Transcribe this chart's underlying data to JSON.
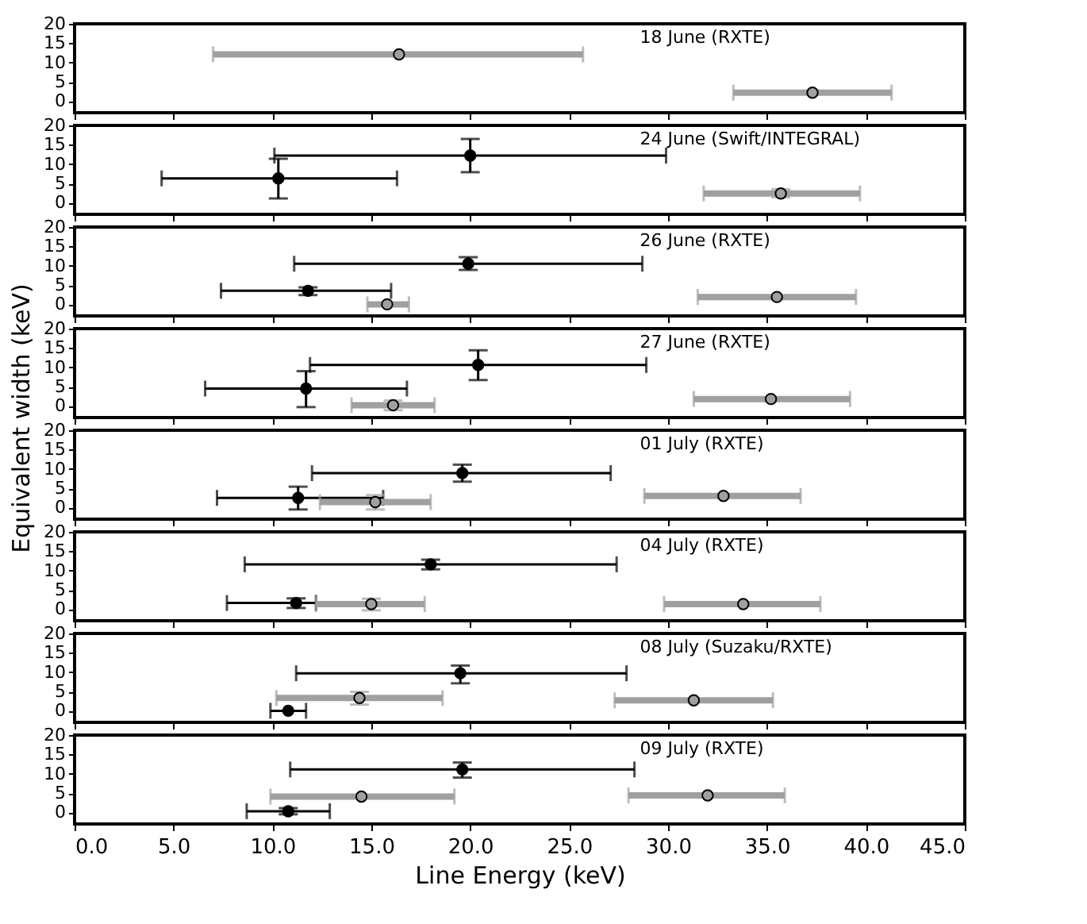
{
  "chart_data": [
    {
      "type": "scatter",
      "annotations": [
        "18 June (RXTE)"
      ],
      "xlim": [
        0,
        45
      ],
      "xticks": [
        {
          "value": 0,
          "label": null
        },
        {
          "value": 5,
          "label": null
        },
        {
          "value": 10,
          "label": null
        },
        {
          "value": 15,
          "label": null
        },
        {
          "value": 20,
          "label": null
        },
        {
          "value": 25,
          "label": null
        },
        {
          "value": 30,
          "label": null
        },
        {
          "value": 35,
          "label": null
        },
        {
          "value": 40,
          "label": null
        },
        {
          "value": 45,
          "label": null
        }
      ],
      "ylim": [
        -3,
        20
      ],
      "yticks": [
        0,
        5,
        10,
        15,
        20
      ],
      "tick_labels": "y",
      "marker": "circle",
      "series": [
        {
          "color": "#a0a0a0",
          "x": [
            16.4,
            37.3
          ],
          "values": [
            12.1,
            2.2
          ],
          "xerrors": [
            [
              7.0,
              25.7
            ],
            [
              33.3,
              41.3
            ]
          ],
          "errors": [
            null,
            null
          ]
        }
      ]
    },
    {
      "type": "scatter",
      "annotations": [
        "24 June (Swift/INTEGRAL)"
      ],
      "xlim": [
        0,
        45
      ],
      "xticks": [
        {
          "value": 0,
          "label": null
        },
        {
          "value": 5,
          "label": null
        },
        {
          "value": 10,
          "label": null
        },
        {
          "value": 15,
          "label": null
        },
        {
          "value": 20,
          "label": null
        },
        {
          "value": 25,
          "label": null
        },
        {
          "value": 30,
          "label": null
        },
        {
          "value": 35,
          "label": null
        },
        {
          "value": 40,
          "label": null
        },
        {
          "value": 45,
          "label": null
        }
      ],
      "ylim": [
        -3,
        20
      ],
      "yticks": [
        0,
        5,
        10,
        15,
        20
      ],
      "tick_labels": "y",
      "marker": "circle",
      "series": [
        {
          "color": "#000000",
          "x": [
            10.3,
            20.0
          ],
          "values": [
            6.3,
            12.2
          ],
          "xerrors": [
            [
              4.4,
              16.3
            ],
            [
              10.1,
              29.9
            ]
          ],
          "errors": [
            [
              1.1,
              11.4
            ],
            [
              7.9,
              16.5
            ]
          ]
        },
        {
          "color": "#a0a0a0",
          "x": [
            35.7
          ],
          "values": [
            2.4
          ],
          "xerrors": [
            [
              31.8,
              39.7
            ]
          ],
          "errors": [
            [
              1.4,
              3.5
            ]
          ]
        }
      ]
    },
    {
      "type": "scatter",
      "annotations": [
        "26 June (RXTE)"
      ],
      "xlim": [
        0,
        45
      ],
      "xticks": [
        {
          "value": 0,
          "label": null
        },
        {
          "value": 5,
          "label": null
        },
        {
          "value": 10,
          "label": null
        },
        {
          "value": 15,
          "label": null
        },
        {
          "value": 20,
          "label": null
        },
        {
          "value": 25,
          "label": null
        },
        {
          "value": 30,
          "label": null
        },
        {
          "value": 35,
          "label": null
        },
        {
          "value": 40,
          "label": null
        },
        {
          "value": 45,
          "label": null
        }
      ],
      "ylim": [
        -3,
        20
      ],
      "yticks": [
        0,
        5,
        10,
        15,
        20
      ],
      "tick_labels": "y",
      "marker": "circle",
      "series": [
        {
          "color": "#000000",
          "x": [
            11.8,
            19.9
          ],
          "values": [
            3.5,
            10.5
          ],
          "xerrors": [
            [
              7.4,
              16.0
            ],
            [
              11.1,
              28.7
            ]
          ],
          "errors": [
            [
              2.4,
              4.4
            ],
            [
              8.9,
              12.2
            ]
          ]
        },
        {
          "color": "#a0a0a0",
          "x": [
            15.8,
            35.5
          ],
          "values": [
            0,
            1.9
          ],
          "xerrors": [
            [
              14.8,
              16.9
            ],
            [
              31.5,
              39.5
            ]
          ],
          "errors": [
            null,
            null
          ]
        }
      ]
    },
    {
      "type": "scatter",
      "annotations": [
        "27 June (RXTE)"
      ],
      "ylabel": "Equivalent width (keV)",
      "xlim": [
        0,
        45
      ],
      "xticks": [
        {
          "value": 0,
          "label": null
        },
        {
          "value": 5,
          "label": null
        },
        {
          "value": 10,
          "label": null
        },
        {
          "value": 15,
          "label": null
        },
        {
          "value": 20,
          "label": null
        },
        {
          "value": 25,
          "label": null
        },
        {
          "value": 30,
          "label": null
        },
        {
          "value": 35,
          "label": null
        },
        {
          "value": 40,
          "label": null
        },
        {
          "value": 45,
          "label": null
        }
      ],
      "ylim": [
        -3,
        20
      ],
      "yticks": [
        0,
        5,
        10,
        15,
        20
      ],
      "tick_labels": "y",
      "marker": "circle",
      "series": [
        {
          "color": "#000000",
          "x": [
            11.7,
            20.4
          ],
          "values": [
            4.5,
            10.6
          ],
          "xerrors": [
            [
              6.6,
              16.8
            ],
            [
              11.9,
              28.9
            ]
          ],
          "errors": [
            [
              -0.3,
              9.0
            ],
            [
              6.7,
              14.4
            ]
          ]
        },
        {
          "color": "#a0a0a0",
          "x": [
            16.1,
            35.2
          ],
          "values": [
            0.2,
            1.8
          ],
          "xerrors": [
            [
              14.0,
              18.2
            ],
            [
              31.3,
              39.2
            ]
          ],
          "errors": [
            [
              -1.1,
              1.4
            ],
            null
          ]
        }
      ]
    },
    {
      "type": "scatter",
      "annotations": [
        "01 July (RXTE)"
      ],
      "xlim": [
        0,
        45
      ],
      "xticks": [
        {
          "value": 0,
          "label": null
        },
        {
          "value": 5,
          "label": null
        },
        {
          "value": 10,
          "label": null
        },
        {
          "value": 15,
          "label": null
        },
        {
          "value": 20,
          "label": null
        },
        {
          "value": 25,
          "label": null
        },
        {
          "value": 30,
          "label": null
        },
        {
          "value": 35,
          "label": null
        },
        {
          "value": 40,
          "label": null
        },
        {
          "value": 45,
          "label": null
        }
      ],
      "ylim": [
        -3,
        20
      ],
      "yticks": [
        0,
        5,
        10,
        15,
        20
      ],
      "tick_labels": "y",
      "marker": "circle",
      "series": [
        {
          "color": "#000000",
          "x": [
            11.3,
            19.6
          ],
          "values": [
            2.5,
            8.9
          ],
          "xerrors": [
            [
              7.2,
              15.6
            ],
            [
              12.0,
              27.1
            ]
          ],
          "errors": [
            [
              -0.5,
              5.4
            ],
            [
              6.7,
              11.1
            ]
          ]
        },
        {
          "color": "#a0a0a0",
          "x": [
            15.2,
            32.8
          ],
          "values": [
            1.4,
            3.0
          ],
          "xerrors": [
            [
              12.4,
              18.0
            ],
            [
              28.8,
              36.7
            ]
          ],
          "errors": [
            [
              -0.5,
              3.2
            ],
            null
          ]
        }
      ]
    },
    {
      "type": "scatter",
      "annotations": [
        "04 July (RXTE)"
      ],
      "xlim": [
        0,
        45
      ],
      "xticks": [
        {
          "value": 0,
          "label": null
        },
        {
          "value": 5,
          "label": null
        },
        {
          "value": 10,
          "label": null
        },
        {
          "value": 15,
          "label": null
        },
        {
          "value": 20,
          "label": null
        },
        {
          "value": 25,
          "label": null
        },
        {
          "value": 30,
          "label": null
        },
        {
          "value": 35,
          "label": null
        },
        {
          "value": 40,
          "label": null
        },
        {
          "value": 45,
          "label": null
        }
      ],
      "ylim": [
        -3,
        20
      ],
      "yticks": [
        0,
        5,
        10,
        15,
        20
      ],
      "tick_labels": "y",
      "marker": "circle",
      "series": [
        {
          "color": "#000000",
          "x": [
            11.2,
            18.0
          ],
          "values": [
            1.6,
            11.6
          ],
          "xerrors": [
            [
              7.7,
              12.2
            ],
            [
              8.6,
              27.4
            ]
          ],
          "errors": [
            [
              0.3,
              2.8
            ],
            [
              10.3,
              12.8
            ]
          ]
        },
        {
          "color": "#a0a0a0",
          "x": [
            15.0,
            33.8
          ],
          "values": [
            1.3,
            1.3
          ],
          "xerrors": [
            [
              12.2,
              17.7
            ],
            [
              29.8,
              37.7
            ]
          ],
          "errors": [
            [
              -0.3,
              2.7
            ],
            null
          ]
        }
      ]
    },
    {
      "type": "scatter",
      "annotations": [
        "08 July (Suzaku/RXTE)"
      ],
      "xlim": [
        0,
        45
      ],
      "xticks": [
        {
          "value": 0,
          "label": null
        },
        {
          "value": 5,
          "label": null
        },
        {
          "value": 10,
          "label": null
        },
        {
          "value": 15,
          "label": null
        },
        {
          "value": 20,
          "label": null
        },
        {
          "value": 25,
          "label": null
        },
        {
          "value": 30,
          "label": null
        },
        {
          "value": 35,
          "label": null
        },
        {
          "value": 40,
          "label": null
        },
        {
          "value": 45,
          "label": null
        }
      ],
      "ylim": [
        -3,
        20
      ],
      "yticks": [
        0,
        5,
        10,
        15,
        20
      ],
      "tick_labels": "y",
      "marker": "circle",
      "series": [
        {
          "color": "#000000",
          "x": [
            10.8,
            19.5
          ],
          "values": [
            0,
            9.7
          ],
          "xerrors": [
            [
              9.9,
              11.7
            ],
            [
              11.2,
              27.9
            ]
          ],
          "errors": [
            null,
            [
              7.1,
              11.7
            ]
          ]
        },
        {
          "color": "#a0a0a0",
          "x": [
            14.4,
            31.3
          ],
          "values": [
            3.3,
            2.7
          ],
          "xerrors": [
            [
              10.2,
              18.6
            ],
            [
              27.3,
              35.3
            ]
          ],
          "errors": [
            [
              1.6,
              4.9
            ],
            null
          ]
        }
      ]
    },
    {
      "type": "scatter",
      "annotations": [
        "09 July (RXTE)"
      ],
      "xlabel": "Line Energy (keV)",
      "xlim": [
        0,
        45
      ],
      "xticks": [
        {
          "value": 0,
          "label": "0.0"
        },
        {
          "value": 5,
          "label": "5.0"
        },
        {
          "value": 10,
          "label": "10.0"
        },
        {
          "value": 15,
          "label": "15.0"
        },
        {
          "value": 20,
          "label": "20.0"
        },
        {
          "value": 25,
          "label": "25.0"
        },
        {
          "value": 30,
          "label": "30.0"
        },
        {
          "value": 35,
          "label": "35.0"
        },
        {
          "value": 40,
          "label": "40.0"
        },
        {
          "value": 45,
          "label": "45.0"
        }
      ],
      "ylim": [
        -3,
        20
      ],
      "yticks": [
        0,
        5,
        10,
        15,
        20
      ],
      "marker": "circle",
      "series": [
        {
          "color": "#000000",
          "x": [
            10.8,
            19.6
          ],
          "values": [
            0.3,
            11.1
          ],
          "xerrors": [
            [
              8.7,
              12.9
            ],
            [
              10.9,
              28.3
            ]
          ],
          "errors": [
            [
              -0.5,
              1.1
            ],
            [
              9.0,
              12.9
            ]
          ]
        },
        {
          "color": "#a0a0a0",
          "x": [
            14.5,
            32.0
          ],
          "values": [
            4.1,
            4.4
          ],
          "xerrors": [
            [
              9.9,
              19.2
            ],
            [
              28.0,
              35.9
            ]
          ],
          "errors": [
            null,
            null
          ]
        }
      ]
    }
  ]
}
